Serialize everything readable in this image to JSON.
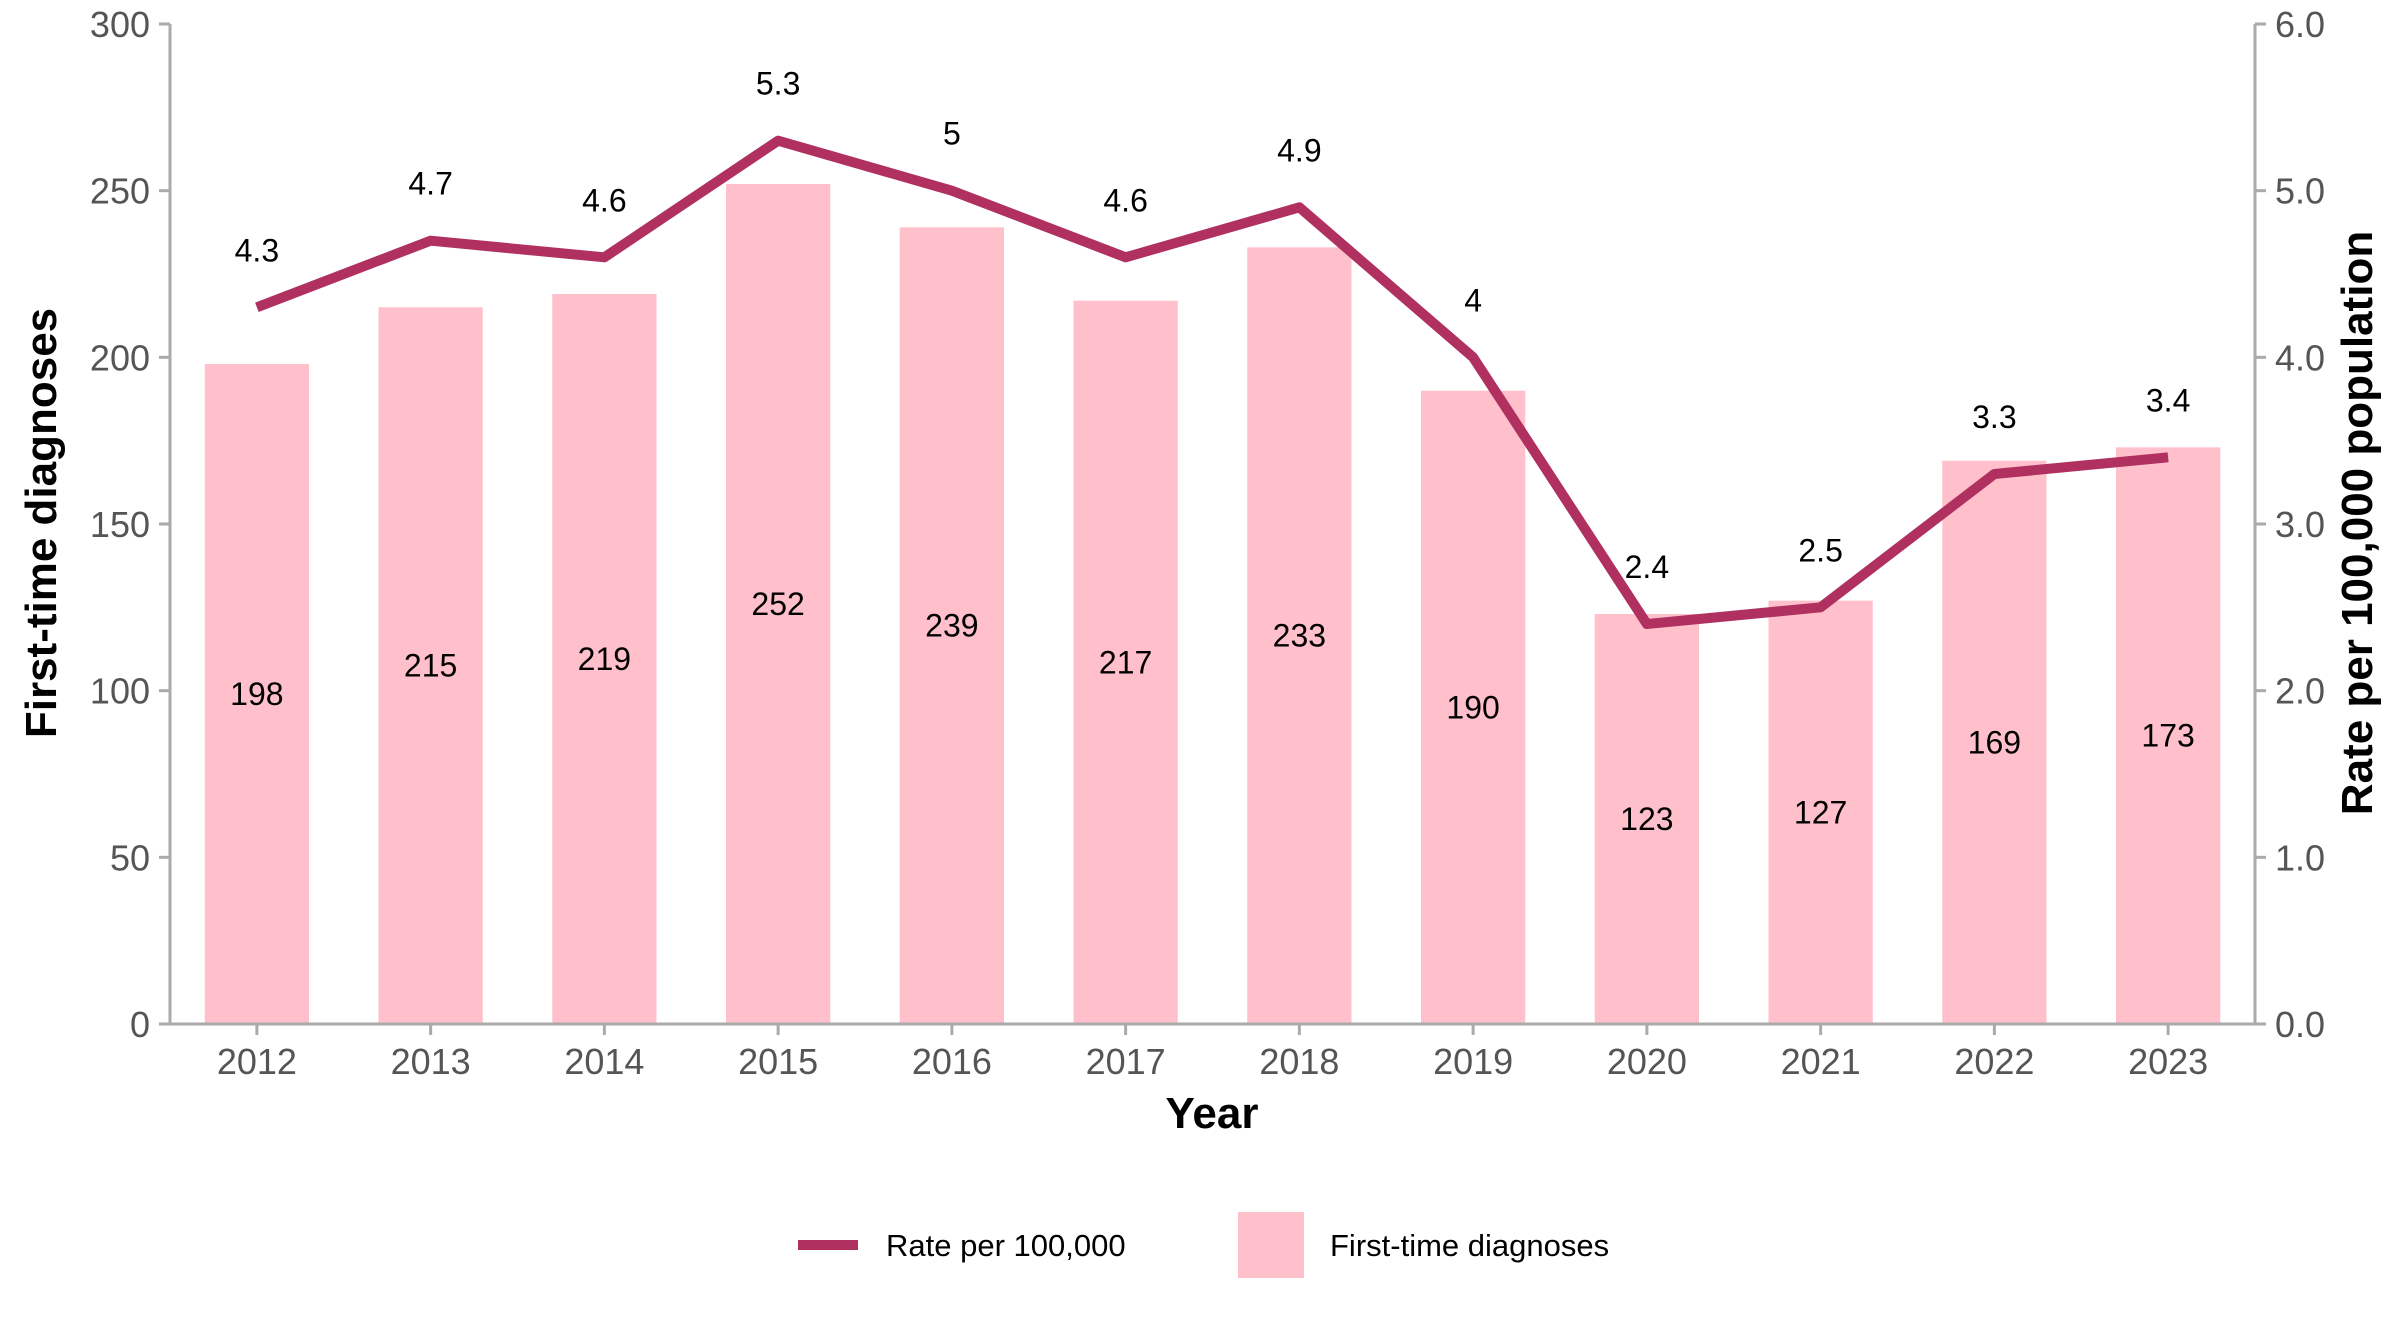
{
  "chart_data": {
    "type": "bar",
    "categories": [
      "2012",
      "2013",
      "2014",
      "2015",
      "2016",
      "2017",
      "2018",
      "2019",
      "2020",
      "2021",
      "2022",
      "2023"
    ],
    "series": [
      {
        "name": "First-time diagnoses",
        "type": "bar",
        "axis": "left",
        "values": [
          198,
          215,
          219,
          252,
          239,
          217,
          233,
          190,
          123,
          127,
          169,
          173
        ],
        "labels": [
          "198",
          "215",
          "219",
          "252",
          "239",
          "217",
          "233",
          "190",
          "123",
          "127",
          "169",
          "173"
        ]
      },
      {
        "name": "Rate per 100,000",
        "type": "line",
        "axis": "right",
        "values": [
          4.3,
          4.7,
          4.6,
          5.3,
          5.0,
          4.6,
          4.9,
          4.0,
          2.4,
          2.5,
          3.3,
          3.4
        ],
        "labels": [
          "4.3",
          "4.7",
          "4.6",
          "5.3",
          "5",
          "4.6",
          "4.9",
          "4",
          "2.4",
          "2.5",
          "3.3",
          "3.4"
        ]
      }
    ],
    "xlabel": "Year",
    "ylabel": "First-time diagnoses",
    "y2label": "Rate per 100,000 population",
    "ylim": [
      0,
      300
    ],
    "y2lim": [
      0,
      6
    ],
    "yticks": [
      "0",
      "50",
      "100",
      "150",
      "200",
      "250",
      "300"
    ],
    "y2ticks": [
      "0.0",
      "1.0",
      "2.0",
      "3.0",
      "4.0",
      "5.0",
      "6.0"
    ],
    "grid": false,
    "legend_position": "bottom",
    "legend": [
      {
        "name": "Rate per 100,000",
        "shape": "line"
      },
      {
        "name": "First-time diagnoses",
        "shape": "box"
      }
    ],
    "colors": {
      "bar": "#ffc0cb",
      "line": "#b03060",
      "axis": "#aaaaaa"
    }
  }
}
